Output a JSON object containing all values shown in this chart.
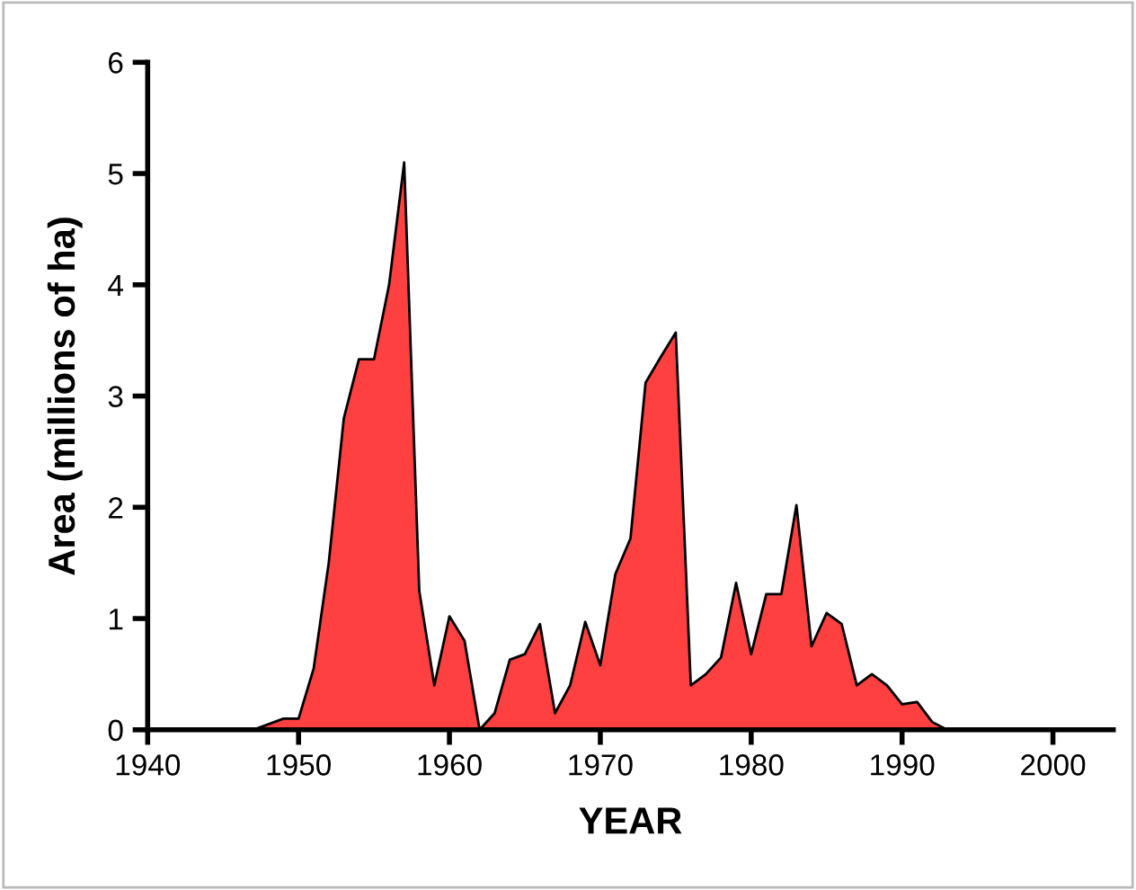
{
  "chart_data": {
    "type": "area",
    "xlabel": "YEAR",
    "ylabel": "Area (millions of ha)",
    "x": [
      1940,
      1947,
      1948,
      1949,
      1950,
      1951,
      1952,
      1953,
      1954,
      1955,
      1956,
      1957,
      1958,
      1959,
      1960,
      1961,
      1962,
      1963,
      1964,
      1965,
      1966,
      1967,
      1968,
      1969,
      1970,
      1971,
      1972,
      1973,
      1974,
      1975,
      1976,
      1977,
      1978,
      1979,
      1980,
      1981,
      1982,
      1983,
      1984,
      1985,
      1986,
      1987,
      1988,
      1989,
      1990,
      1991,
      1992,
      1993
    ],
    "series": [
      {
        "color": "#ff4040",
        "values": [
          0,
          0,
          0.05,
          0.1,
          0.1,
          0.55,
          1.5,
          2.8,
          3.33,
          3.33,
          4.0,
          5.1,
          1.25,
          0.4,
          1.02,
          0.8,
          0,
          0.15,
          0.63,
          0.68,
          0.95,
          0.15,
          0.4,
          0.97,
          0.58,
          1.4,
          1.72,
          3.12,
          3.35,
          3.57,
          0.4,
          0.5,
          0.65,
          1.32,
          0.68,
          1.22,
          1.22,
          2.02,
          0.75,
          1.05,
          0.95,
          0.4,
          0.5,
          0.4,
          0.23,
          0.25,
          0.07,
          0
        ]
      }
    ],
    "xlim": [
      1940,
      2004
    ],
    "xticks": [
      1940,
      1950,
      1960,
      1970,
      1980,
      1990,
      2000
    ],
    "ylim": [
      0,
      6
    ],
    "yticks": [
      0,
      1,
      2,
      3,
      4,
      5,
      6
    ],
    "grid": false,
    "legend": false
  }
}
